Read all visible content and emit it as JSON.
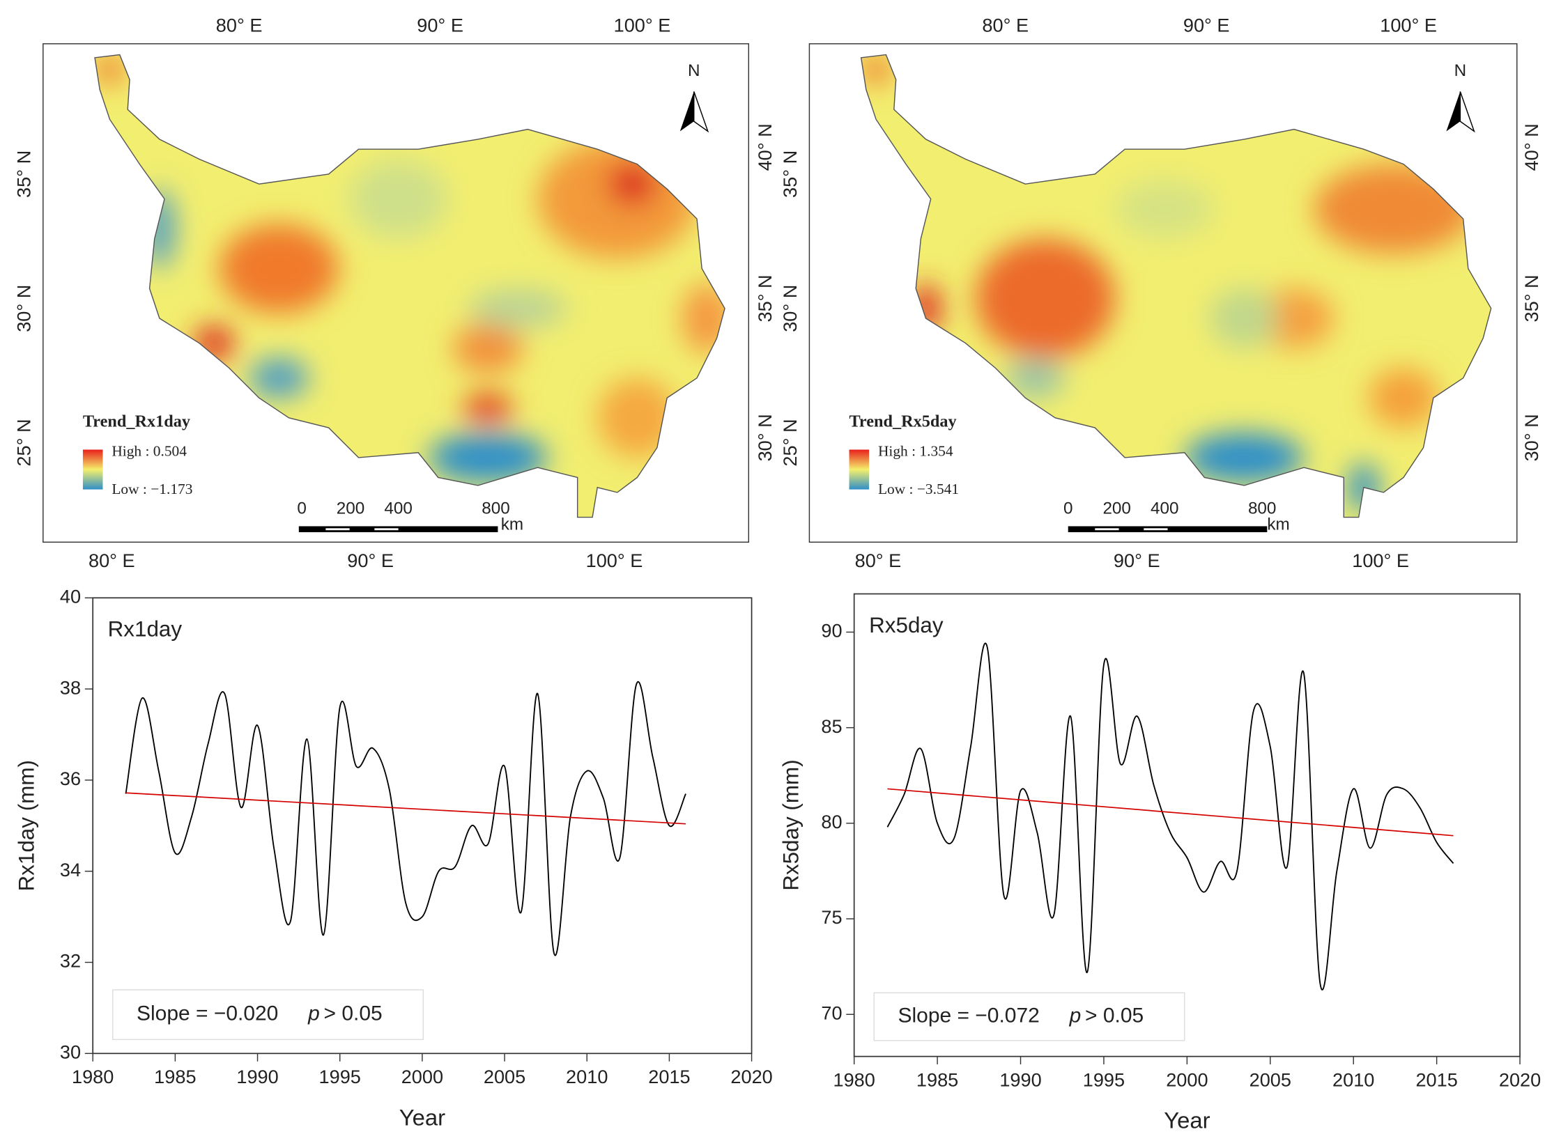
{
  "maps": [
    {
      "lon_top": [
        "80° E",
        "90° E",
        "100° E"
      ],
      "lon_bottom": [
        "80° E",
        "90° E",
        "100° E"
      ],
      "lat_left": [
        "35° N",
        "30° N",
        "25° N"
      ],
      "lat_right": [
        "40° N",
        "35° N",
        "30° N"
      ],
      "north": "N",
      "legend_title": "Trend_Rx1day",
      "legend_high": "High : 0.504",
      "legend_low": "Low : −1.173",
      "scale": [
        "0",
        "200",
        "400",
        "800"
      ],
      "scale_unit": "km"
    },
    {
      "lon_top": [
        "80° E",
        "90° E",
        "100° E"
      ],
      "lon_bottom": [
        "80° E",
        "90° E",
        "100° E"
      ],
      "lat_left": [
        "35° N",
        "30° N",
        "25° N"
      ],
      "lat_right": [
        "40° N",
        "35° N",
        "30° N"
      ],
      "north": "N",
      "legend_title": "Trend_Rx5day",
      "legend_high": "High : 1.354",
      "legend_low": "Low : −3.541",
      "scale": [
        "0",
        "200",
        "400",
        "800"
      ],
      "scale_unit": "km"
    }
  ],
  "chart_data": [
    {
      "type": "line",
      "title": "Rx1day",
      "xlabel": "Year",
      "ylabel": "Rx1day (mm)",
      "x": [
        1982,
        1983,
        1984,
        1985,
        1986,
        1987,
        1988,
        1989,
        1990,
        1991,
        1992,
        1993,
        1994,
        1995,
        1996,
        1997,
        1998,
        1999,
        2000,
        2001,
        2002,
        2003,
        2004,
        2005,
        2006,
        2007,
        2008,
        2009,
        2010,
        2011,
        2012,
        2013,
        2014,
        2015,
        2016
      ],
      "series": [
        {
          "color": "#000000",
          "values": [
            35.7,
            37.8,
            36.2,
            34.4,
            35.2,
            36.8,
            37.9,
            35.4,
            37.2,
            34.5,
            32.9,
            36.9,
            32.6,
            37.6,
            36.3,
            36.7,
            35.8,
            33.3,
            33.0,
            34.0,
            34.1,
            35.0,
            34.6,
            36.3,
            33.1,
            37.9,
            32.2,
            35.2,
            36.2,
            35.6,
            34.3,
            38.1,
            36.5,
            35.0,
            35.7
          ]
        }
      ],
      "trend": {
        "color": "#d40000",
        "x": [
          1982,
          2016
        ],
        "values": [
          35.72,
          35.04
        ]
      },
      "slope_label": "Slope = −0.020",
      "p_symbol": "p",
      "p_label": "> 0.05",
      "xlim": [
        1980,
        2020
      ],
      "xticks": [
        1980,
        1985,
        1990,
        1995,
        2000,
        2005,
        2010,
        2015,
        2020
      ],
      "ylim": [
        30,
        40
      ],
      "yticks": [
        30,
        32,
        34,
        36,
        38,
        40
      ]
    },
    {
      "type": "line",
      "title": "Rx5day",
      "xlabel": "Year",
      "ylabel": "Rx5day (mm)",
      "x": [
        1982,
        1983,
        1984,
        1985,
        1986,
        1987,
        1988,
        1989,
        1990,
        1991,
        1992,
        1993,
        1994,
        1995,
        1996,
        1997,
        1998,
        1999,
        2000,
        2001,
        2002,
        2003,
        2004,
        2005,
        2006,
        2007,
        2008,
        2009,
        2010,
        2011,
        2012,
        2013,
        2014,
        2015,
        2016
      ],
      "series": [
        {
          "color": "#000000",
          "values": [
            79.8,
            81.5,
            83.9,
            80.0,
            79.2,
            84.0,
            89.2,
            76.2,
            81.7,
            79.5,
            75.2,
            85.6,
            72.2,
            88.3,
            83.1,
            85.6,
            82.0,
            79.5,
            78.2,
            76.4,
            78.0,
            77.5,
            85.9,
            84.0,
            77.7,
            87.9,
            71.6,
            77.5,
            81.8,
            78.7,
            81.5,
            81.8,
            80.8,
            79.0,
            77.9
          ]
        }
      ],
      "trend": {
        "color": "#d40000",
        "x": [
          1982,
          2016
        ],
        "values": [
          81.8,
          79.35
        ]
      },
      "slope_label": "Slope = −0.072",
      "p_symbol": "p",
      "p_label": "> 0.05",
      "xlim": [
        1980,
        2020
      ],
      "xticks": [
        1980,
        1985,
        1990,
        1995,
        2000,
        2005,
        2010,
        2015,
        2020
      ],
      "ylim": [
        67.8,
        92
      ],
      "yticks": [
        70,
        75,
        80,
        85,
        90
      ]
    }
  ]
}
